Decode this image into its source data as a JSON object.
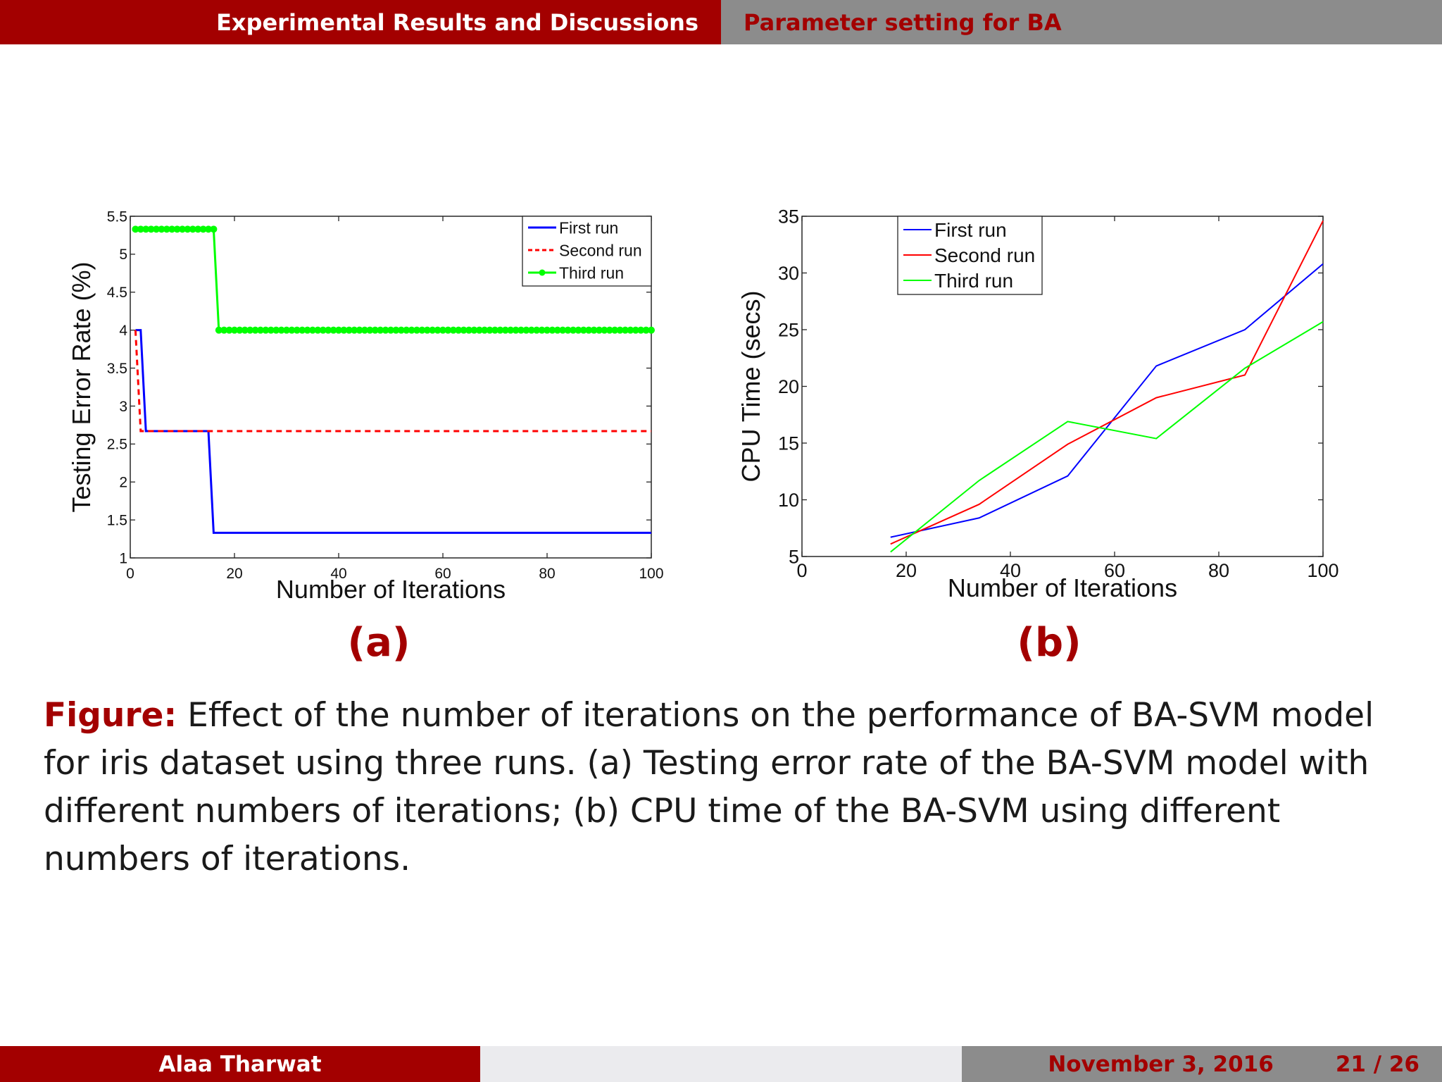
{
  "header": {
    "section": "Experimental Results and Discussions",
    "subsection": "Parameter setting for BA"
  },
  "footer": {
    "author": "Alaa Tharwat",
    "date": "November 3, 2016",
    "page": "21 / 26"
  },
  "figure": {
    "label_a": "(a)",
    "label_b": "(b)",
    "caption_label": "Figure:",
    "caption_text": "Effect of the number of iterations on the performance of BA-SVM model for iris dataset using three runs. (a) Testing error rate of the BA-SVM model with different numbers of iterations; (b) CPU time of the BA-SVM using different numbers of iterations."
  },
  "colors": {
    "accent": "#a30000",
    "gray_bar": "#8c8c8c",
    "a_first": "#0000ff",
    "a_second": "#ff0000",
    "a_third": "#00ff00",
    "b_first": "#0000ff",
    "b_second": "#ff0000",
    "b_third": "#00ff00"
  },
  "chart_data": [
    {
      "id": "a",
      "type": "line",
      "xlabel": "Number of Iterations",
      "ylabel": "Testing Error Rate (%)",
      "xlim": [
        0,
        100
      ],
      "ylim": [
        1,
        5.5
      ],
      "xticks": [
        0,
        20,
        40,
        60,
        80,
        100
      ],
      "xtick_labels": [
        "0",
        "20",
        "40",
        "60",
        "80",
        "100"
      ],
      "yticks": [
        1,
        1.5,
        2,
        2.5,
        3,
        3.5,
        4,
        4.5,
        5,
        5.5
      ],
      "ytick_labels": [
        "1",
        "1.5",
        "2",
        "2.5",
        "3",
        "3.5",
        "4",
        "4.5",
        "5",
        "5.5"
      ],
      "legend_position": "top-right",
      "series": [
        {
          "name": "First run",
          "style": "solid",
          "marker": false,
          "x": [
            1,
            2,
            3,
            15,
            16,
            100
          ],
          "y": [
            4,
            4,
            2.67,
            2.67,
            1.33,
            1.33
          ]
        },
        {
          "name": "Second run",
          "style": "dashed",
          "marker": false,
          "x": [
            1,
            2,
            100
          ],
          "y": [
            4,
            2.67,
            2.67
          ]
        },
        {
          "name": "Third run",
          "style": "solid",
          "marker": true,
          "x": [
            1,
            2,
            3,
            4,
            5,
            6,
            7,
            8,
            9,
            10,
            11,
            12,
            13,
            14,
            15,
            16,
            17,
            18,
            19,
            20,
            21,
            22,
            23,
            24,
            25,
            26,
            27,
            28,
            29,
            30,
            31,
            32,
            33,
            34,
            35,
            36,
            37,
            38,
            39,
            40,
            41,
            42,
            43,
            44,
            45,
            46,
            47,
            48,
            49,
            50,
            51,
            52,
            53,
            54,
            55,
            56,
            57,
            58,
            59,
            60,
            61,
            62,
            63,
            64,
            65,
            66,
            67,
            68,
            69,
            70,
            71,
            72,
            73,
            74,
            75,
            76,
            77,
            78,
            79,
            80,
            81,
            82,
            83,
            84,
            85,
            86,
            87,
            88,
            89,
            90,
            91,
            92,
            93,
            94,
            95,
            96,
            97,
            98,
            99,
            100
          ],
          "y": [
            5.33,
            5.33,
            5.33,
            5.33,
            5.33,
            5.33,
            5.33,
            5.33,
            5.33,
            5.33,
            5.33,
            5.33,
            5.33,
            5.33,
            5.33,
            5.33,
            4,
            4,
            4,
            4,
            4,
            4,
            4,
            4,
            4,
            4,
            4,
            4,
            4,
            4,
            4,
            4,
            4,
            4,
            4,
            4,
            4,
            4,
            4,
            4,
            4,
            4,
            4,
            4,
            4,
            4,
            4,
            4,
            4,
            4,
            4,
            4,
            4,
            4,
            4,
            4,
            4,
            4,
            4,
            4,
            4,
            4,
            4,
            4,
            4,
            4,
            4,
            4,
            4,
            4,
            4,
            4,
            4,
            4,
            4,
            4,
            4,
            4,
            4,
            4,
            4,
            4,
            4,
            4,
            4,
            4,
            4,
            4,
            4,
            4,
            4,
            4,
            4,
            4,
            4,
            4,
            4,
            4,
            4,
            4
          ]
        }
      ]
    },
    {
      "id": "b",
      "type": "line",
      "xlabel": "Number of Iterations",
      "ylabel": "CPU Time (secs)",
      "xlim": [
        0,
        100
      ],
      "ylim": [
        5,
        35
      ],
      "xticks": [
        0,
        20,
        40,
        60,
        80,
        100
      ],
      "xtick_labels": [
        "0",
        "20",
        "40",
        "60",
        "80",
        "100"
      ],
      "yticks": [
        5,
        10,
        15,
        20,
        25,
        30,
        35
      ],
      "ytick_labels": [
        "5",
        "10",
        "15",
        "20",
        "25",
        "30",
        "35"
      ],
      "legend_position": "top-left",
      "series": [
        {
          "name": "First run",
          "x": [
            17,
            34,
            51,
            68,
            85,
            100
          ],
          "y": [
            6.7,
            8.4,
            12.1,
            21.8,
            25.0,
            30.8
          ]
        },
        {
          "name": "Second run",
          "x": [
            17,
            34,
            51,
            68,
            85,
            100
          ],
          "y": [
            6.1,
            9.6,
            14.9,
            19.0,
            21.0,
            34.6
          ]
        },
        {
          "name": "Third run",
          "x": [
            17,
            34,
            51,
            68,
            85,
            100
          ],
          "y": [
            5.4,
            11.7,
            16.9,
            15.4,
            21.6,
            25.7
          ]
        }
      ]
    }
  ]
}
